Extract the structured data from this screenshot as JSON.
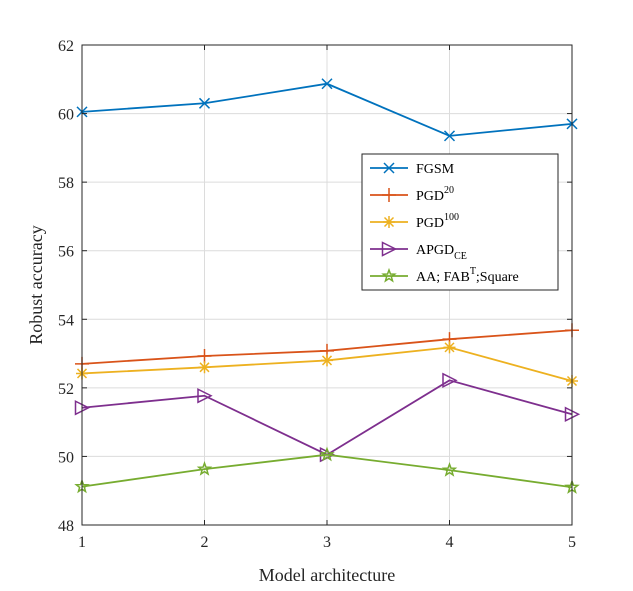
{
  "chart_data": {
    "type": "line",
    "title": "",
    "xlabel": "Model architecture",
    "ylabel": "Robust accuracy",
    "xlim": [
      1,
      5
    ],
    "ylim": [
      48,
      62
    ],
    "xticks": [
      1,
      2,
      3,
      4,
      5
    ],
    "yticks": [
      48,
      50,
      52,
      54,
      56,
      58,
      60,
      62
    ],
    "grid": true,
    "legend_position": "top-right",
    "x": [
      1,
      2,
      3,
      4,
      5
    ],
    "series": [
      {
        "name": "FGSM",
        "legend_base": "FGSM",
        "legend_sup": "",
        "legend_sub": "",
        "legend_rest": "",
        "marker": "x",
        "color": "#0072BD",
        "values": [
          60.05,
          60.3,
          60.87,
          59.35,
          59.7
        ]
      },
      {
        "name": "PGD20",
        "legend_base": "PGD",
        "legend_sup": "20",
        "legend_sub": "",
        "legend_rest": "",
        "marker": "+",
        "color": "#D95319",
        "values": [
          52.7,
          52.93,
          53.08,
          53.42,
          53.68
        ]
      },
      {
        "name": "PGD100",
        "legend_base": "PGD",
        "legend_sup": "100",
        "legend_sub": "",
        "legend_rest": "",
        "marker": "*",
        "color": "#EDB120",
        "values": [
          52.42,
          52.6,
          52.8,
          53.18,
          52.2
        ]
      },
      {
        "name": "APGDCE",
        "legend_base": "APGD",
        "legend_sup": "",
        "legend_sub": "CE",
        "legend_rest": "",
        "marker": "triangle-right",
        "color": "#7E2F8E",
        "values": [
          51.42,
          51.77,
          50.05,
          52.22,
          51.23
        ]
      },
      {
        "name": "AA; FABT;Square",
        "legend_base": "AA; FAB",
        "legend_sup": "T",
        "legend_sub": "",
        "legend_rest": ";Square",
        "marker": "pentagram",
        "color": "#77AC30",
        "values": [
          49.12,
          49.63,
          50.05,
          49.6,
          49.1
        ]
      }
    ]
  }
}
